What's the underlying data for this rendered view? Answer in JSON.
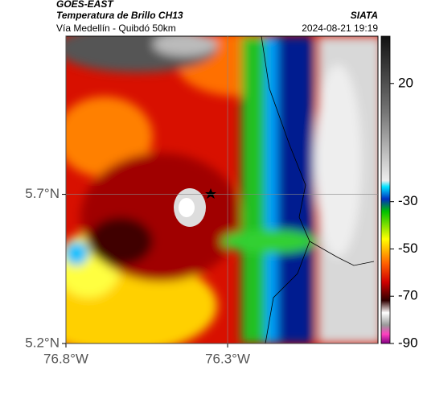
{
  "header": {
    "source": "GOES-EAST",
    "title": "Temperatura de Brillo CH13",
    "subtitle": "Vía Medellín - Quibdó 50km",
    "org": "SIATA",
    "timestamp": "2024-08-21 19:19"
  },
  "map": {
    "xlim": [
      -76.8,
      -75.835
    ],
    "ylim": [
      5.2,
      6.23
    ],
    "xticks": [
      {
        "value": -76.8,
        "label": "76.8°W"
      },
      {
        "value": -76.3,
        "label": "76.3°W"
      }
    ],
    "yticks": [
      {
        "value": 5.2,
        "label": "5.2°N"
      },
      {
        "value": 5.7,
        "label": "5.7°N"
      }
    ],
    "grid": true
  },
  "colorbar": {
    "clim": [
      -90,
      40
    ],
    "ticks": [
      20,
      -30,
      -50,
      -70,
      -90
    ]
  }
}
